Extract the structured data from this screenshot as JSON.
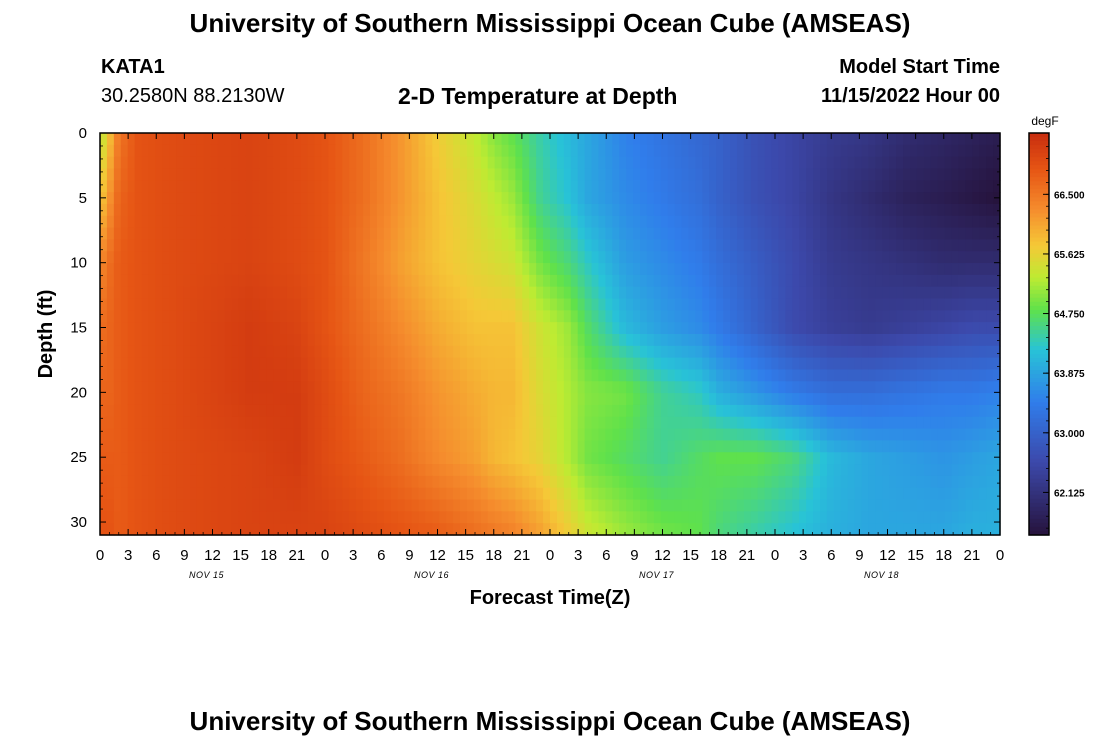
{
  "header": {
    "title": "University of Southern Mississippi Ocean Cube (AMSEAS)",
    "station": "KATA1",
    "coords": "30.2580N  88.2130W",
    "subtitle": "2-D Temperature at Depth",
    "start_label": "Model Start Time",
    "start_date": "11/15/2022 Hour 00"
  },
  "footer": {
    "title": "University of Southern Mississippi Ocean Cube (AMSEAS)"
  },
  "chart_data": {
    "type": "heatmap",
    "xlabel": "Forecast Time(Z)",
    "ylabel": "Depth (ft)",
    "x_range_hours": [
      0,
      96
    ],
    "x_ticks": [
      "0",
      "3",
      "6",
      "9",
      "12",
      "15",
      "18",
      "21",
      "0",
      "3",
      "6",
      "9",
      "12",
      "15",
      "18",
      "21",
      "0",
      "3",
      "6",
      "9",
      "12",
      "15",
      "18",
      "21",
      "0",
      "3",
      "6",
      "9",
      "12",
      "15",
      "18",
      "21",
      "0"
    ],
    "day_labels": [
      "NOV 15",
      "NOV 16",
      "NOV 17",
      "NOV 18"
    ],
    "y_ticks": [
      0,
      5,
      10,
      15,
      20,
      25,
      30
    ],
    "y_range": [
      0,
      31
    ],
    "y_reversed": true,
    "colorbar": {
      "unit": "degF",
      "tick_labels": [
        "66.500",
        "65.625",
        "64.750",
        "63.875",
        "63.000",
        "62.125"
      ],
      "tick_values": [
        66.5,
        65.625,
        64.75,
        63.875,
        63.0,
        62.125
      ],
      "range": [
        61.5,
        67.4
      ]
    },
    "depths": [
      0,
      5,
      10,
      15,
      20,
      25,
      31
    ],
    "hours": [
      0,
      1,
      2,
      4,
      8,
      16,
      21,
      24,
      28,
      32,
      36,
      40,
      42,
      44,
      47,
      50,
      52,
      56,
      60,
      64,
      66,
      70,
      74,
      78,
      82,
      86,
      90,
      93,
      96
    ],
    "values": [
      [
        65.2,
        65.8,
        66.5,
        66.9,
        67.0,
        67.1,
        67.0,
        66.9,
        66.6,
        66.2,
        65.7,
        65.3,
        65.0,
        64.8,
        64.4,
        64.1,
        63.9,
        63.5,
        63.3,
        63.1,
        63.0,
        62.7,
        62.5,
        62.3,
        62.2,
        62.0,
        61.9,
        61.8,
        61.7
      ],
      [
        65.7,
        66.2,
        66.7,
        66.9,
        67.0,
        67.1,
        67.0,
        66.9,
        66.6,
        66.2,
        65.8,
        65.5,
        65.3,
        65.1,
        64.5,
        64.2,
        63.9,
        63.6,
        63.4,
        63.2,
        63.0,
        62.7,
        62.5,
        62.2,
        62.0,
        61.8,
        61.7,
        61.6,
        61.5
      ],
      [
        66.3,
        66.6,
        66.8,
        66.9,
        67.0,
        67.1,
        67.0,
        66.9,
        66.5,
        66.1,
        65.8,
        65.6,
        65.5,
        65.4,
        64.9,
        64.6,
        64.3,
        63.8,
        63.6,
        63.4,
        63.2,
        62.9,
        62.6,
        62.3,
        62.2,
        62.1,
        62.0,
        62.0,
        62.0
      ],
      [
        66.6,
        66.7,
        66.8,
        66.9,
        67.0,
        67.2,
        67.1,
        66.9,
        66.6,
        66.3,
        66.0,
        65.8,
        65.8,
        65.8,
        65.4,
        65.1,
        64.7,
        64.1,
        63.8,
        63.6,
        63.4,
        63.0,
        62.6,
        62.4,
        62.3,
        62.4,
        62.5,
        62.6,
        62.6
      ],
      [
        66.7,
        66.7,
        66.8,
        66.9,
        67.0,
        67.2,
        67.2,
        67.0,
        66.7,
        66.5,
        66.2,
        66.0,
        65.9,
        65.9,
        65.5,
        65.2,
        65.0,
        64.9,
        64.5,
        64.3,
        64.0,
        63.7,
        63.4,
        63.2,
        63.2,
        63.3,
        63.4,
        63.4,
        63.5
      ],
      [
        66.8,
        66.8,
        66.8,
        66.9,
        67.0,
        67.1,
        67.2,
        67.0,
        66.8,
        66.6,
        66.3,
        66.1,
        65.9,
        65.8,
        65.6,
        65.2,
        64.9,
        64.7,
        64.5,
        64.7,
        64.8,
        64.8,
        64.6,
        64.1,
        63.9,
        63.8,
        63.7,
        63.8,
        63.9
      ],
      [
        66.9,
        66.9,
        66.8,
        66.9,
        67.0,
        67.1,
        67.1,
        67.1,
        67.0,
        66.9,
        66.8,
        66.6,
        66.5,
        66.4,
        66.1,
        65.7,
        65.4,
        65.1,
        64.9,
        64.8,
        64.6,
        64.4,
        64.2,
        64.0,
        63.9,
        63.9,
        63.9,
        64.0,
        64.0
      ]
    ]
  }
}
